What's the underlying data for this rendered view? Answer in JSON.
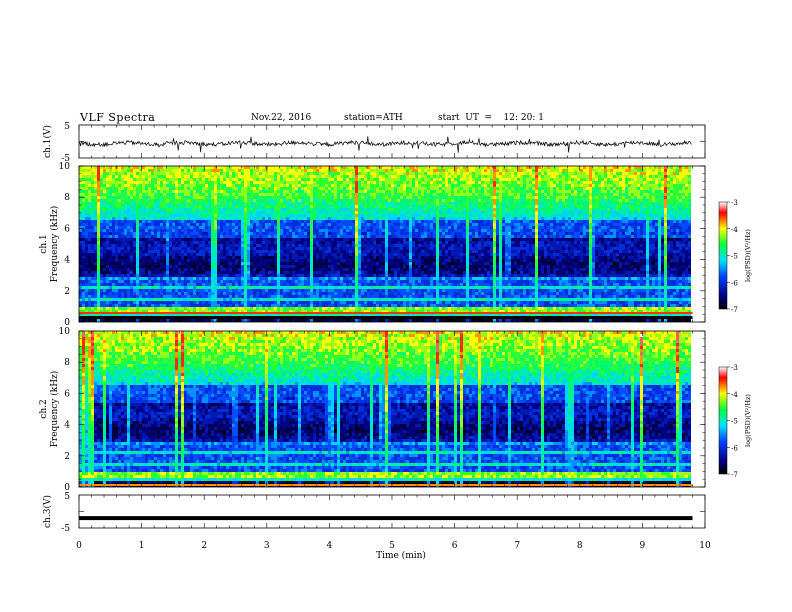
{
  "header": {
    "title": "VLF Spectra",
    "date": "Nov.22, 2016",
    "station": "station=ATH",
    "start": "start  UT  =    12: 20: 1"
  },
  "chart_data": [
    {
      "type": "line",
      "name": "ch1-waveform",
      "ylabel": "ch.1(V)",
      "ylim": [
        -5,
        5
      ],
      "yticks": [
        "5",
        "-5"
      ],
      "xlim": [
        0,
        10
      ],
      "note": "noisy waveform centered near 0 V, spikes to about ±3 V",
      "x_end": 9.8
    },
    {
      "type": "heatmap",
      "name": "ch1-spectrogram",
      "ylabel": "ch.1\nFrequency  (kHz)",
      "ylabel_line1": "ch.1",
      "ylabel_line2": "Frequency  (kHz)",
      "ylim": [
        0,
        10
      ],
      "yticks": [
        "0",
        "2",
        "4",
        "6",
        "8",
        "10"
      ],
      "xlim": [
        0,
        10
      ],
      "x_end": 9.8,
      "colorbar": {
        "label": "log(PSD)(V²/Hz)",
        "range": [
          -7,
          -3
        ],
        "ticks": [
          "-3",
          "-4",
          "-5",
          "-6",
          "-7"
        ]
      }
    },
    {
      "type": "heatmap",
      "name": "ch2-spectrogram",
      "ylabel_line1": "ch.2",
      "ylabel_line2": "Frequency  (kHz)",
      "ylim": [
        0,
        10
      ],
      "yticks": [
        "0",
        "2",
        "4",
        "6",
        "8",
        "10"
      ],
      "xlim": [
        0,
        10
      ],
      "x_end": 9.8,
      "colorbar": {
        "label": "log(PSD)(V²/Hz)",
        "range": [
          -7,
          -3
        ],
        "ticks": [
          "-3",
          "-4",
          "-5",
          "-6",
          "-7"
        ]
      }
    },
    {
      "type": "line",
      "name": "ch3-waveform",
      "ylabel": "ch.3(V)",
      "ylim": [
        -5,
        5
      ],
      "yticks": [
        "5",
        "-5"
      ],
      "xlim": [
        0,
        10
      ],
      "x_end": 9.8,
      "level": -2
    }
  ],
  "xaxis": {
    "label": "Time  (min)",
    "ticks": [
      "0",
      "1",
      "2",
      "3",
      "4",
      "5",
      "6",
      "7",
      "8",
      "9",
      "10"
    ]
  },
  "colors": {
    "low": "#000033",
    "mid": "#00c8ff",
    "high": "#ff0000"
  }
}
